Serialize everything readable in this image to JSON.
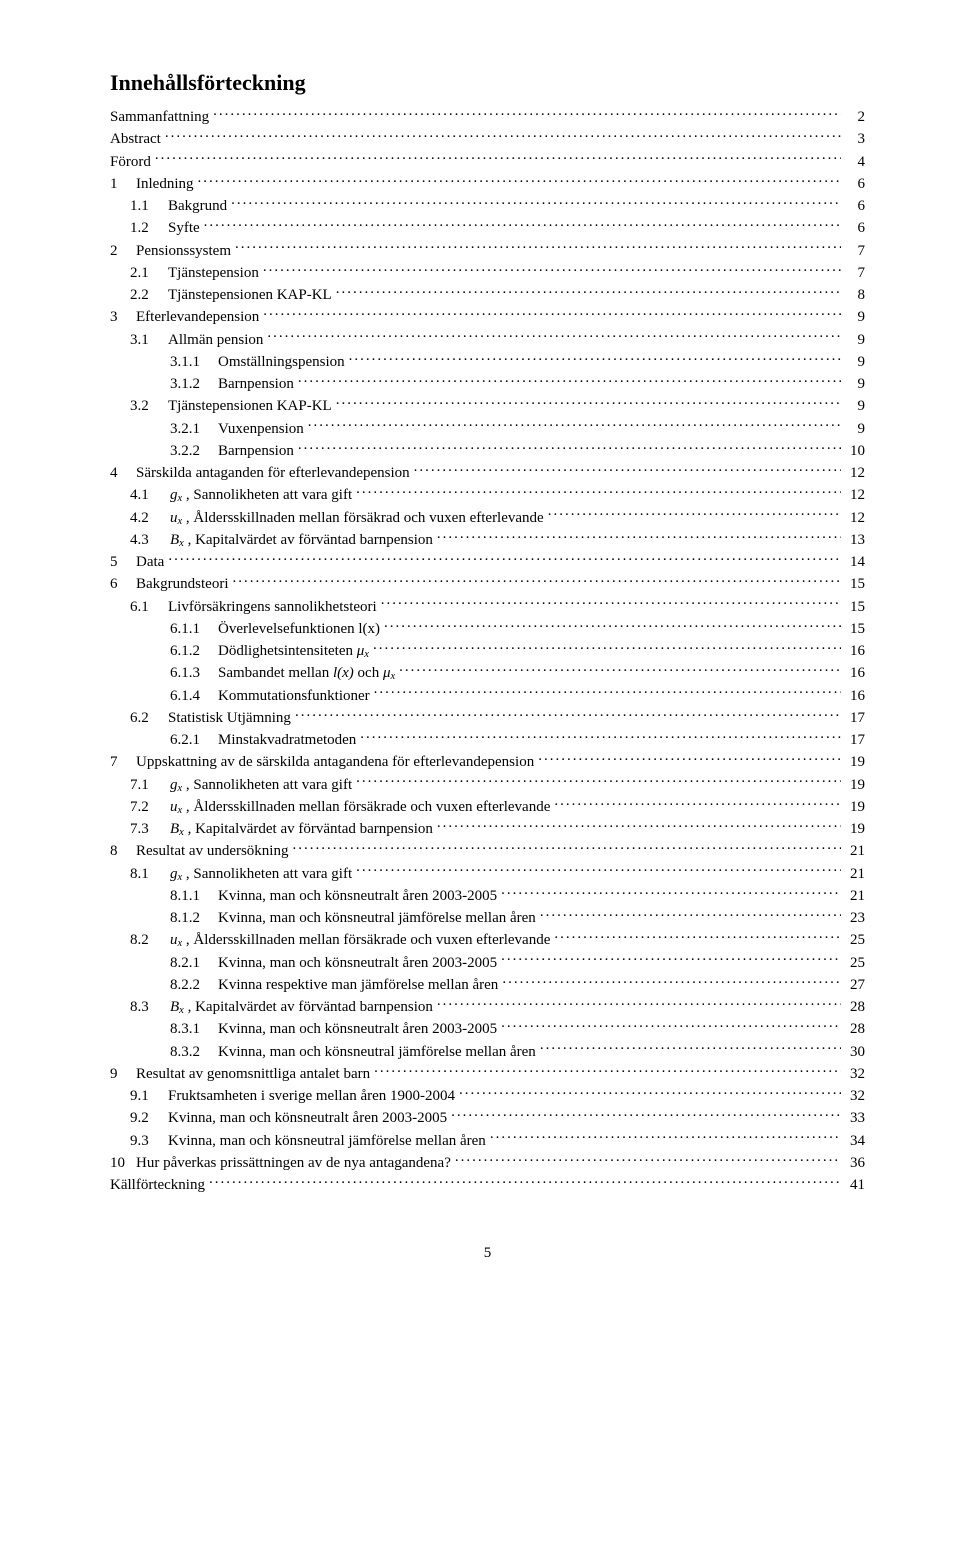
{
  "title": "Innehållsförteckning",
  "page_number": "5",
  "colors": {
    "text": "#000000",
    "background": "#ffffff"
  },
  "typography": {
    "title_fontsize": 22,
    "body_fontsize": 15,
    "font_family": "Times New Roman"
  },
  "entries": [
    {
      "indent": 0,
      "num": "",
      "label": "Sammanfattning",
      "page": "2"
    },
    {
      "indent": 0,
      "num": "",
      "label": "Abstract",
      "page": "3"
    },
    {
      "indent": 0,
      "num": "",
      "label": "Förord",
      "page": "4"
    },
    {
      "indent": 0,
      "num": "1",
      "label": "Inledning",
      "numClass": "numw1 gap20",
      "page": "6"
    },
    {
      "indent": 1,
      "num": "1.1",
      "label": "Bakgrund",
      "numClass": "numw2 gap30",
      "page": "6"
    },
    {
      "indent": 1,
      "num": "1.2",
      "label": "Syfte",
      "numClass": "numw2 gap30",
      "page": "6"
    },
    {
      "indent": 0,
      "num": "2",
      "label": "Pensionssystem",
      "numClass": "numw1 gap20",
      "page": "7"
    },
    {
      "indent": 1,
      "num": "2.1",
      "label": "Tjänstepension",
      "numClass": "numw2 gap30",
      "page": "7"
    },
    {
      "indent": 1,
      "num": "2.2",
      "label": "Tjänstepensionen KAP-KL",
      "numClass": "numw2 gap30",
      "page": "8"
    },
    {
      "indent": 0,
      "num": "3",
      "label": "Efterlevandepension",
      "numClass": "numw1 gap20",
      "page": "9"
    },
    {
      "indent": 1,
      "num": "3.1",
      "label": "Allmän pension",
      "numClass": "numw2 gap30",
      "page": "9"
    },
    {
      "indent": 2,
      "num": "3.1.1",
      "label": "Omställningspension",
      "numClass": "numw3 gap30",
      "page": "9"
    },
    {
      "indent": 2,
      "num": "3.1.2",
      "label": "Barnpension",
      "numClass": "numw3 gap30",
      "page": "9"
    },
    {
      "indent": 1,
      "num": "3.2",
      "label": "Tjänstepensionen KAP-KL",
      "numClass": "numw2 gap30",
      "page": "9"
    },
    {
      "indent": 2,
      "num": "3.2.1",
      "label": "Vuxenpension",
      "numClass": "numw3 gap30",
      "page": "9"
    },
    {
      "indent": 2,
      "num": "3.2.2",
      "label": "Barnpension",
      "numClass": "numw3 gap30",
      "page": "10"
    },
    {
      "indent": 0,
      "num": "4",
      "label": "Särskilda antaganden för efterlevandepension",
      "numClass": "numw1 gap20",
      "page": "12"
    },
    {
      "indent": 1,
      "num": "4.1",
      "var": "g",
      "sub": "x",
      "tail": ", Sannolikheten att vara gift",
      "numClass": "numw2 gap40",
      "page": "12"
    },
    {
      "indent": 1,
      "num": "4.2",
      "var": "u",
      "sub": "x",
      "tail": ", Åldersskillnaden mellan försäkrad och vuxen efterlevande",
      "numClass": "numw2 gap40",
      "page": "12"
    },
    {
      "indent": 1,
      "num": "4.3",
      "var": "B",
      "sub": "x",
      "tail": ", Kapitalvärdet av förväntad barnpension",
      "numClass": "numw2 gap40",
      "page": "13"
    },
    {
      "indent": 0,
      "num": "5",
      "label": "Data",
      "numClass": "numw1 gap20",
      "page": "14"
    },
    {
      "indent": 0,
      "num": "6",
      "label": "Bakgrundsteori",
      "numClass": "numw1 gap20",
      "page": "15"
    },
    {
      "indent": 1,
      "num": "6.1",
      "label": "Livförsäkringens sannolikhetsteori",
      "numClass": "numw2 gap30",
      "page": "15"
    },
    {
      "indent": 2,
      "num": "6.1.1",
      "label": "Överlevelsefunktionen l(x)",
      "numClass": "numw3 gap30",
      "page": "15"
    },
    {
      "indent": 2,
      "num": "6.1.2",
      "pre": "Dödlighetsintensiteten ",
      "var": "μ",
      "sub": "x",
      "numClass": "numw3 gap30",
      "page": "16"
    },
    {
      "indent": 2,
      "num": "6.1.3",
      "pre": "Sambandet mellan ",
      "ital": "l(x)",
      "mid": " och ",
      "var": "μ",
      "sub": "x",
      "numClass": "numw3 gap30",
      "page": "16"
    },
    {
      "indent": 2,
      "num": "6.1.4",
      "label": "Kommutationsfunktioner",
      "numClass": "numw3 gap30",
      "page": "16"
    },
    {
      "indent": 1,
      "num": "6.2",
      "label": "Statistisk Utjämning",
      "numClass": "numw2 gap30",
      "page": "17"
    },
    {
      "indent": 2,
      "num": "6.2.1",
      "label": "Minstakvadratmetoden",
      "numClass": "numw3 gap30",
      "page": "17"
    },
    {
      "indent": 0,
      "num": "7",
      "label": "Uppskattning av de särskilda antagandena för efterlevandepension",
      "numClass": "numw1 gap20",
      "page": "19"
    },
    {
      "indent": 1,
      "num": "7.1",
      "var": "g",
      "sub": "x",
      "tail": ", Sannolikheten att vara gift",
      "numClass": "numw2 gap40",
      "page": "19"
    },
    {
      "indent": 1,
      "num": "7.2",
      "var": "u",
      "sub": "x",
      "tail": ", Åldersskillnaden mellan försäkrade och vuxen efterlevande",
      "numClass": "numw2 gap40",
      "page": "19"
    },
    {
      "indent": 1,
      "num": "7.3",
      "var": "B",
      "sub": "x",
      "tail": ", Kapitalvärdet av förväntad barnpension",
      "numClass": "numw2 gap40",
      "page": "19"
    },
    {
      "indent": 0,
      "num": "8",
      "label": "Resultat av undersökning",
      "numClass": "numw1 gap20",
      "page": "21"
    },
    {
      "indent": 1,
      "num": "8.1",
      "var": "g",
      "sub": "x",
      "tail": ", Sannolikheten att vara gift",
      "numClass": "numw2 gap40",
      "page": "21"
    },
    {
      "indent": 2,
      "num": "8.1.1",
      "label": "Kvinna, man och könsneutralt åren 2003-2005",
      "numClass": "numw3 gap30",
      "page": "21"
    },
    {
      "indent": 2,
      "num": "8.1.2",
      "label": "Kvinna, man och könsneutral jämförelse mellan åren",
      "numClass": "numw3 gap30",
      "page": "23"
    },
    {
      "indent": 1,
      "num": "8.2",
      "var": "u",
      "sub": "x",
      "tail": ", Åldersskillnaden mellan försäkrade och vuxen efterlevande",
      "numClass": "numw2 gap40",
      "page": "25"
    },
    {
      "indent": 2,
      "num": "8.2.1",
      "label": "Kvinna, man och könsneutralt åren 2003-2005",
      "numClass": "numw3 gap30",
      "page": "25"
    },
    {
      "indent": 2,
      "num": "8.2.2",
      "label": "Kvinna respektive man jämförelse mellan åren",
      "numClass": "numw3 gap30",
      "page": "27"
    },
    {
      "indent": 1,
      "num": "8.3",
      "var": "B",
      "sub": "x",
      "tail": ", Kapitalvärdet av förväntad barnpension",
      "numClass": "numw2 gap40",
      "page": "28"
    },
    {
      "indent": 2,
      "num": "8.3.1",
      "label": "Kvinna, man och könsneutralt åren 2003-2005",
      "numClass": "numw3 gap30",
      "page": "28"
    },
    {
      "indent": 2,
      "num": "8.3.2",
      "label": "Kvinna, man och könsneutral jämförelse mellan åren",
      "numClass": "numw3 gap30",
      "page": "30"
    },
    {
      "indent": 0,
      "num": "9",
      "label": "Resultat av genomsnittliga antalet barn",
      "numClass": "numw1 gap20",
      "page": "32"
    },
    {
      "indent": 1,
      "num": "9.1",
      "label": "Fruktsamheten i sverige mellan åren 1900-2004",
      "numClass": "numw2 gap30",
      "page": "32"
    },
    {
      "indent": 1,
      "num": "9.2",
      "label": "Kvinna, man och könsneutralt åren 2003-2005",
      "numClass": "numw2 gap30",
      "page": "33"
    },
    {
      "indent": 1,
      "num": "9.3",
      "label": "Kvinna, man och könsneutral jämförelse mellan åren",
      "numClass": "numw2 gap30",
      "page": "34"
    },
    {
      "indent": 0,
      "num": "10",
      "label": "Hur påverkas prissättningen av de nya antagandena?",
      "numClass": "numw1 gap20",
      "page": "36"
    },
    {
      "indent": 0,
      "num": "",
      "label": "Källförteckning",
      "page": "41"
    }
  ]
}
